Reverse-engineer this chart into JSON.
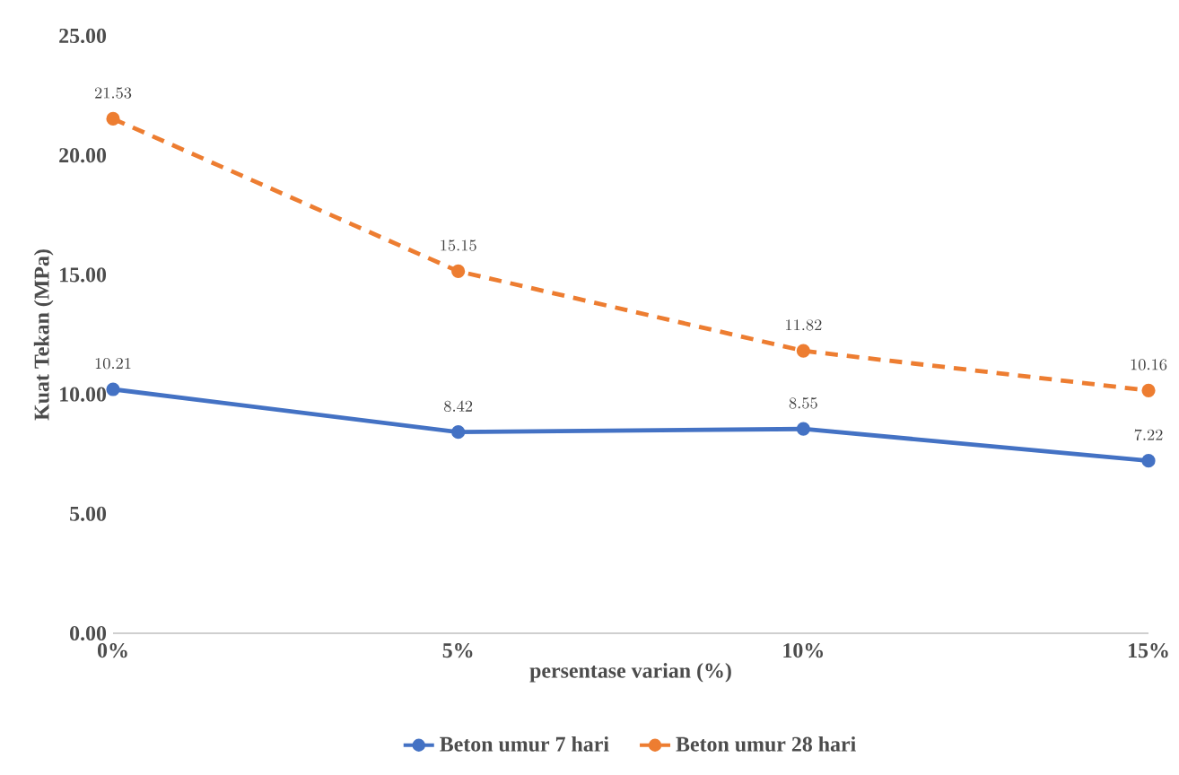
{
  "chart_data": {
    "type": "line",
    "xlabel": "persentase varian (%)",
    "ylabel": "Kuat Tekan (MPa)",
    "categories": [
      "0%",
      "5%",
      "10%",
      "15%"
    ],
    "series": [
      {
        "name": "Beton umur 7 hari",
        "color": "#4472c4",
        "values": [
          10.21,
          8.42,
          8.55,
          7.22
        ],
        "line_style": "solid"
      },
      {
        "name": "Beton umur 28 hari",
        "color": "#ed7d31",
        "values": [
          21.53,
          15.15,
          11.82,
          10.16
        ],
        "line_style": "dashed"
      }
    ],
    "ylim": [
      0,
      25
    ],
    "yticks": [
      {
        "value": 0,
        "label": "0.00"
      },
      {
        "value": 5,
        "label": "5.00"
      },
      {
        "value": 10,
        "label": "10.00"
      },
      {
        "value": 15,
        "label": "15.00"
      },
      {
        "value": 20,
        "label": "20.00"
      },
      {
        "value": 25,
        "label": "25.00"
      }
    ],
    "grid": false,
    "legend": "bottom",
    "marker": "circle",
    "data_labels": true
  }
}
